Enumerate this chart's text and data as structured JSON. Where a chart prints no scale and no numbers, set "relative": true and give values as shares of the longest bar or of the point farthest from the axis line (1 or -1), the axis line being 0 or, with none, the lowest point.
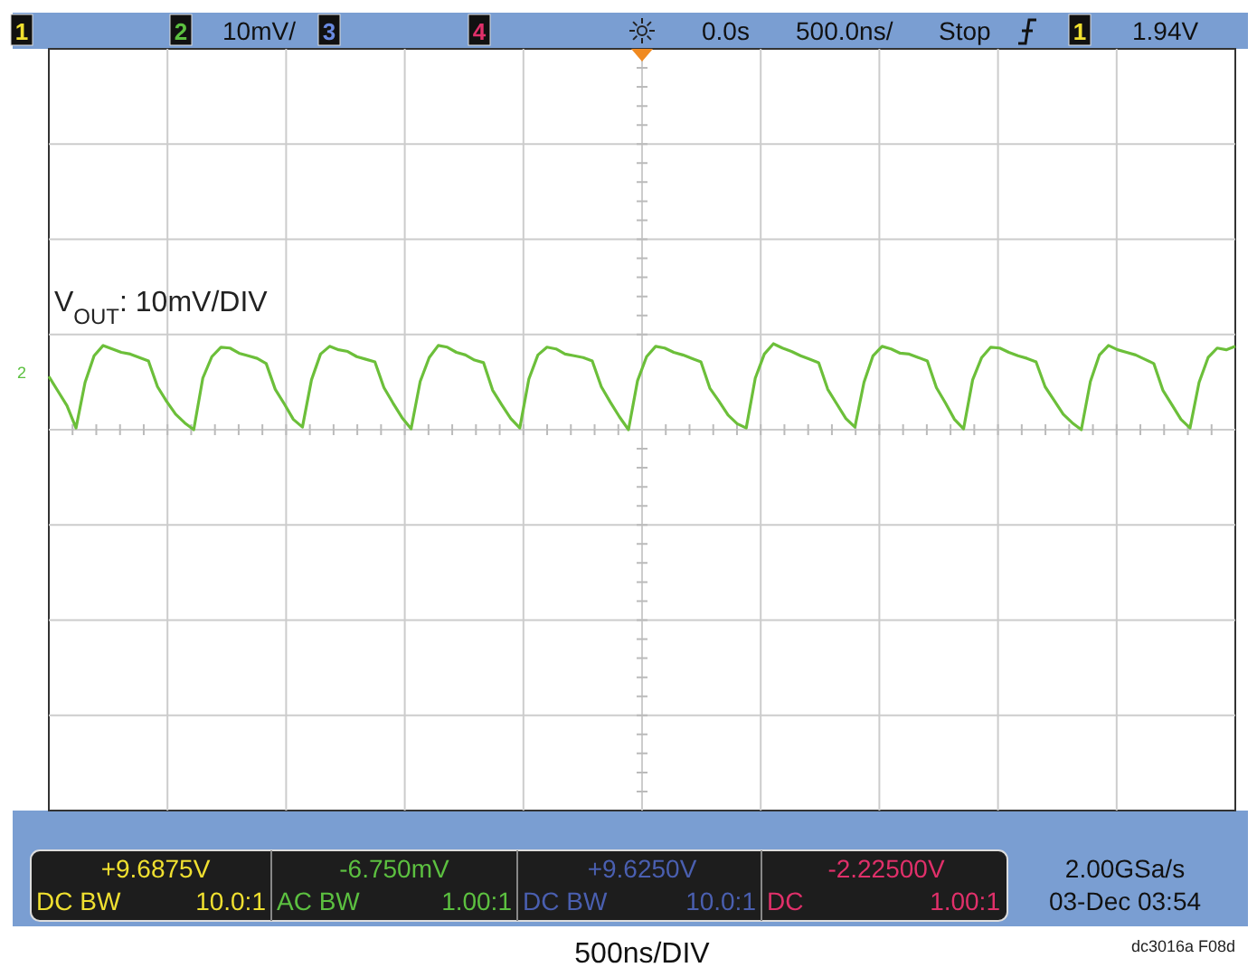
{
  "chart_data": {
    "type": "line",
    "relative": true,
    "grid": true,
    "marker": "none",
    "line_style": "solid",
    "categories": [
      null,
      null,
      null,
      null,
      null,
      null,
      null,
      null,
      null,
      null,
      null,
      null,
      null,
      null,
      null,
      null,
      null,
      null,
      null,
      null,
      null,
      null,
      null,
      null,
      null,
      null,
      null,
      null,
      null,
      null,
      null,
      null,
      null,
      null,
      null,
      null,
      null,
      null,
      null,
      null,
      null,
      null,
      null,
      null,
      null,
      null,
      null,
      null,
      null,
      null,
      null,
      null,
      null,
      null,
      null,
      null,
      null,
      null,
      null,
      null,
      null,
      null,
      null,
      null,
      null,
      null,
      null,
      null,
      null,
      null,
      null,
      null,
      null,
      null,
      null,
      null,
      null,
      null,
      null,
      null,
      null,
      null,
      null,
      null,
      null,
      null,
      null,
      null,
      null,
      null,
      null,
      null,
      null,
      null,
      null,
      null,
      null,
      null,
      null,
      null,
      null,
      null,
      null,
      null,
      null,
      null,
      null,
      null,
      null,
      null,
      null,
      null,
      null,
      null,
      null,
      null,
      null,
      null,
      null,
      null,
      null,
      null,
      null,
      null,
      null,
      null,
      null,
      null,
      null,
      null,
      null,
      null
    ],
    "series": [
      {
        "color": "#6cbf3a",
        "values": [
          0.62,
          0.45,
          0.28,
          0.02,
          0.55,
          0.86,
          0.98,
          0.94,
          0.9,
          0.88,
          0.84,
          0.8,
          0.5,
          0.33,
          0.18,
          0.08,
          0.0,
          0.6,
          0.85,
          0.96,
          0.95,
          0.89,
          0.86,
          0.83,
          0.77,
          0.47,
          0.3,
          0.12,
          0.03,
          0.58,
          0.88,
          0.97,
          0.93,
          0.91,
          0.85,
          0.82,
          0.79,
          0.49,
          0.31,
          0.14,
          0.01,
          0.56,
          0.84,
          0.98,
          0.96,
          0.9,
          0.87,
          0.81,
          0.78,
          0.46,
          0.29,
          0.13,
          0.02,
          0.59,
          0.87,
          0.96,
          0.94,
          0.88,
          0.86,
          0.84,
          0.8,
          0.5,
          0.32,
          0.15,
          0.0,
          0.57,
          0.85,
          0.97,
          0.95,
          0.9,
          0.87,
          0.83,
          0.79,
          0.48,
          0.33,
          0.17,
          0.07,
          0.02,
          0.6,
          0.88,
          1.0,
          0.95,
          0.91,
          0.86,
          0.82,
          0.78,
          0.47,
          0.3,
          0.13,
          0.03,
          0.55,
          0.86,
          0.97,
          0.94,
          0.89,
          0.88,
          0.84,
          0.8,
          0.49,
          0.31,
          0.12,
          0.01,
          0.58,
          0.84,
          0.96,
          0.95,
          0.9,
          0.86,
          0.83,
          0.79,
          0.5,
          0.34,
          0.18,
          0.08,
          0.0,
          0.56,
          0.87,
          0.98,
          0.93,
          0.9,
          0.87,
          0.82,
          0.77,
          0.46,
          0.29,
          0.12,
          0.02,
          0.55,
          0.84,
          0.95,
          0.93,
          0.97
        ]
      }
    ],
    "annotations": [
      "V$_{OUT}$: 10mV/DIV",
      "1",
      "2",
      "10mV/",
      "3",
      "4",
      "0.0s",
      "500.0ns/",
      "Stop",
      "1",
      "1.94V",
      "+9.6875V",
      "DC BW",
      "10.0:1",
      "-6.750mV",
      "AC BW",
      "1.00:1",
      "+9.6250V",
      "DC BW",
      "10.0:1",
      "-2.22500V",
      "DC",
      "1.00:1",
      "2.00GSa/s",
      "03-Dec 03:54",
      "dc3016a F08d",
      "2",
      "500ns/DIV"
    ]
  }
}
